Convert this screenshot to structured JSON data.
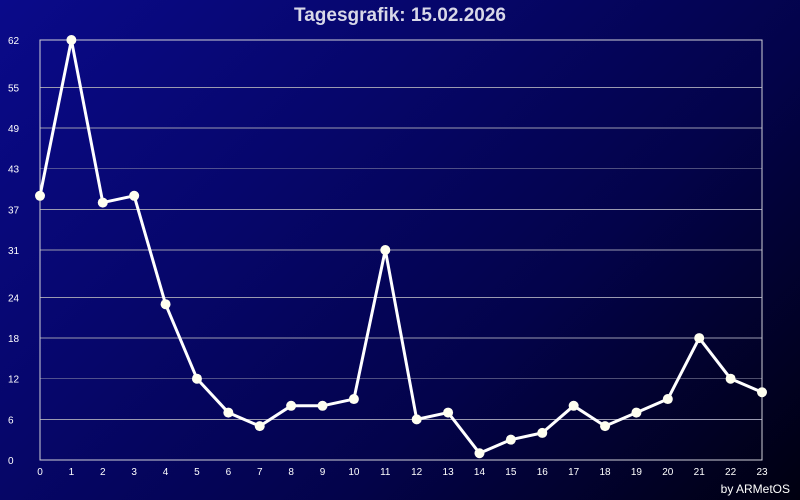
{
  "chart_data": {
    "type": "line",
    "title": "Tagesgrafik: 15.02.2026",
    "xlabel": "",
    "ylabel": "",
    "x": [
      0,
      1,
      2,
      3,
      4,
      5,
      6,
      7,
      8,
      9,
      10,
      11,
      12,
      13,
      14,
      15,
      16,
      17,
      18,
      19,
      20,
      21,
      22,
      23
    ],
    "x_tick_labels": [
      "0",
      "1",
      "2",
      "3",
      "4",
      "5",
      "6",
      "7",
      "8",
      "9",
      "10",
      "11",
      "12",
      "13",
      "14",
      "15",
      "16",
      "17",
      "18",
      "19",
      "20",
      "21",
      "22",
      "23"
    ],
    "y_tick_labels": [
      "0",
      "6",
      "12",
      "18",
      "24",
      "31",
      "37",
      "43",
      "49",
      "55",
      "62"
    ],
    "ylim": [
      0,
      62
    ],
    "grid": true,
    "series": [
      {
        "values": [
          39,
          62,
          38,
          39,
          23,
          12,
          7,
          5,
          8,
          8,
          9,
          31,
          6,
          7,
          1,
          3,
          4,
          8,
          5,
          7,
          9,
          18,
          12,
          10
        ]
      }
    ],
    "colors": {
      "line": "#ffffff",
      "marker": "#fffff0",
      "grid": "#9a9ab0",
      "axis": "#d0d0d8"
    }
  },
  "credit": "by ARMetOS"
}
